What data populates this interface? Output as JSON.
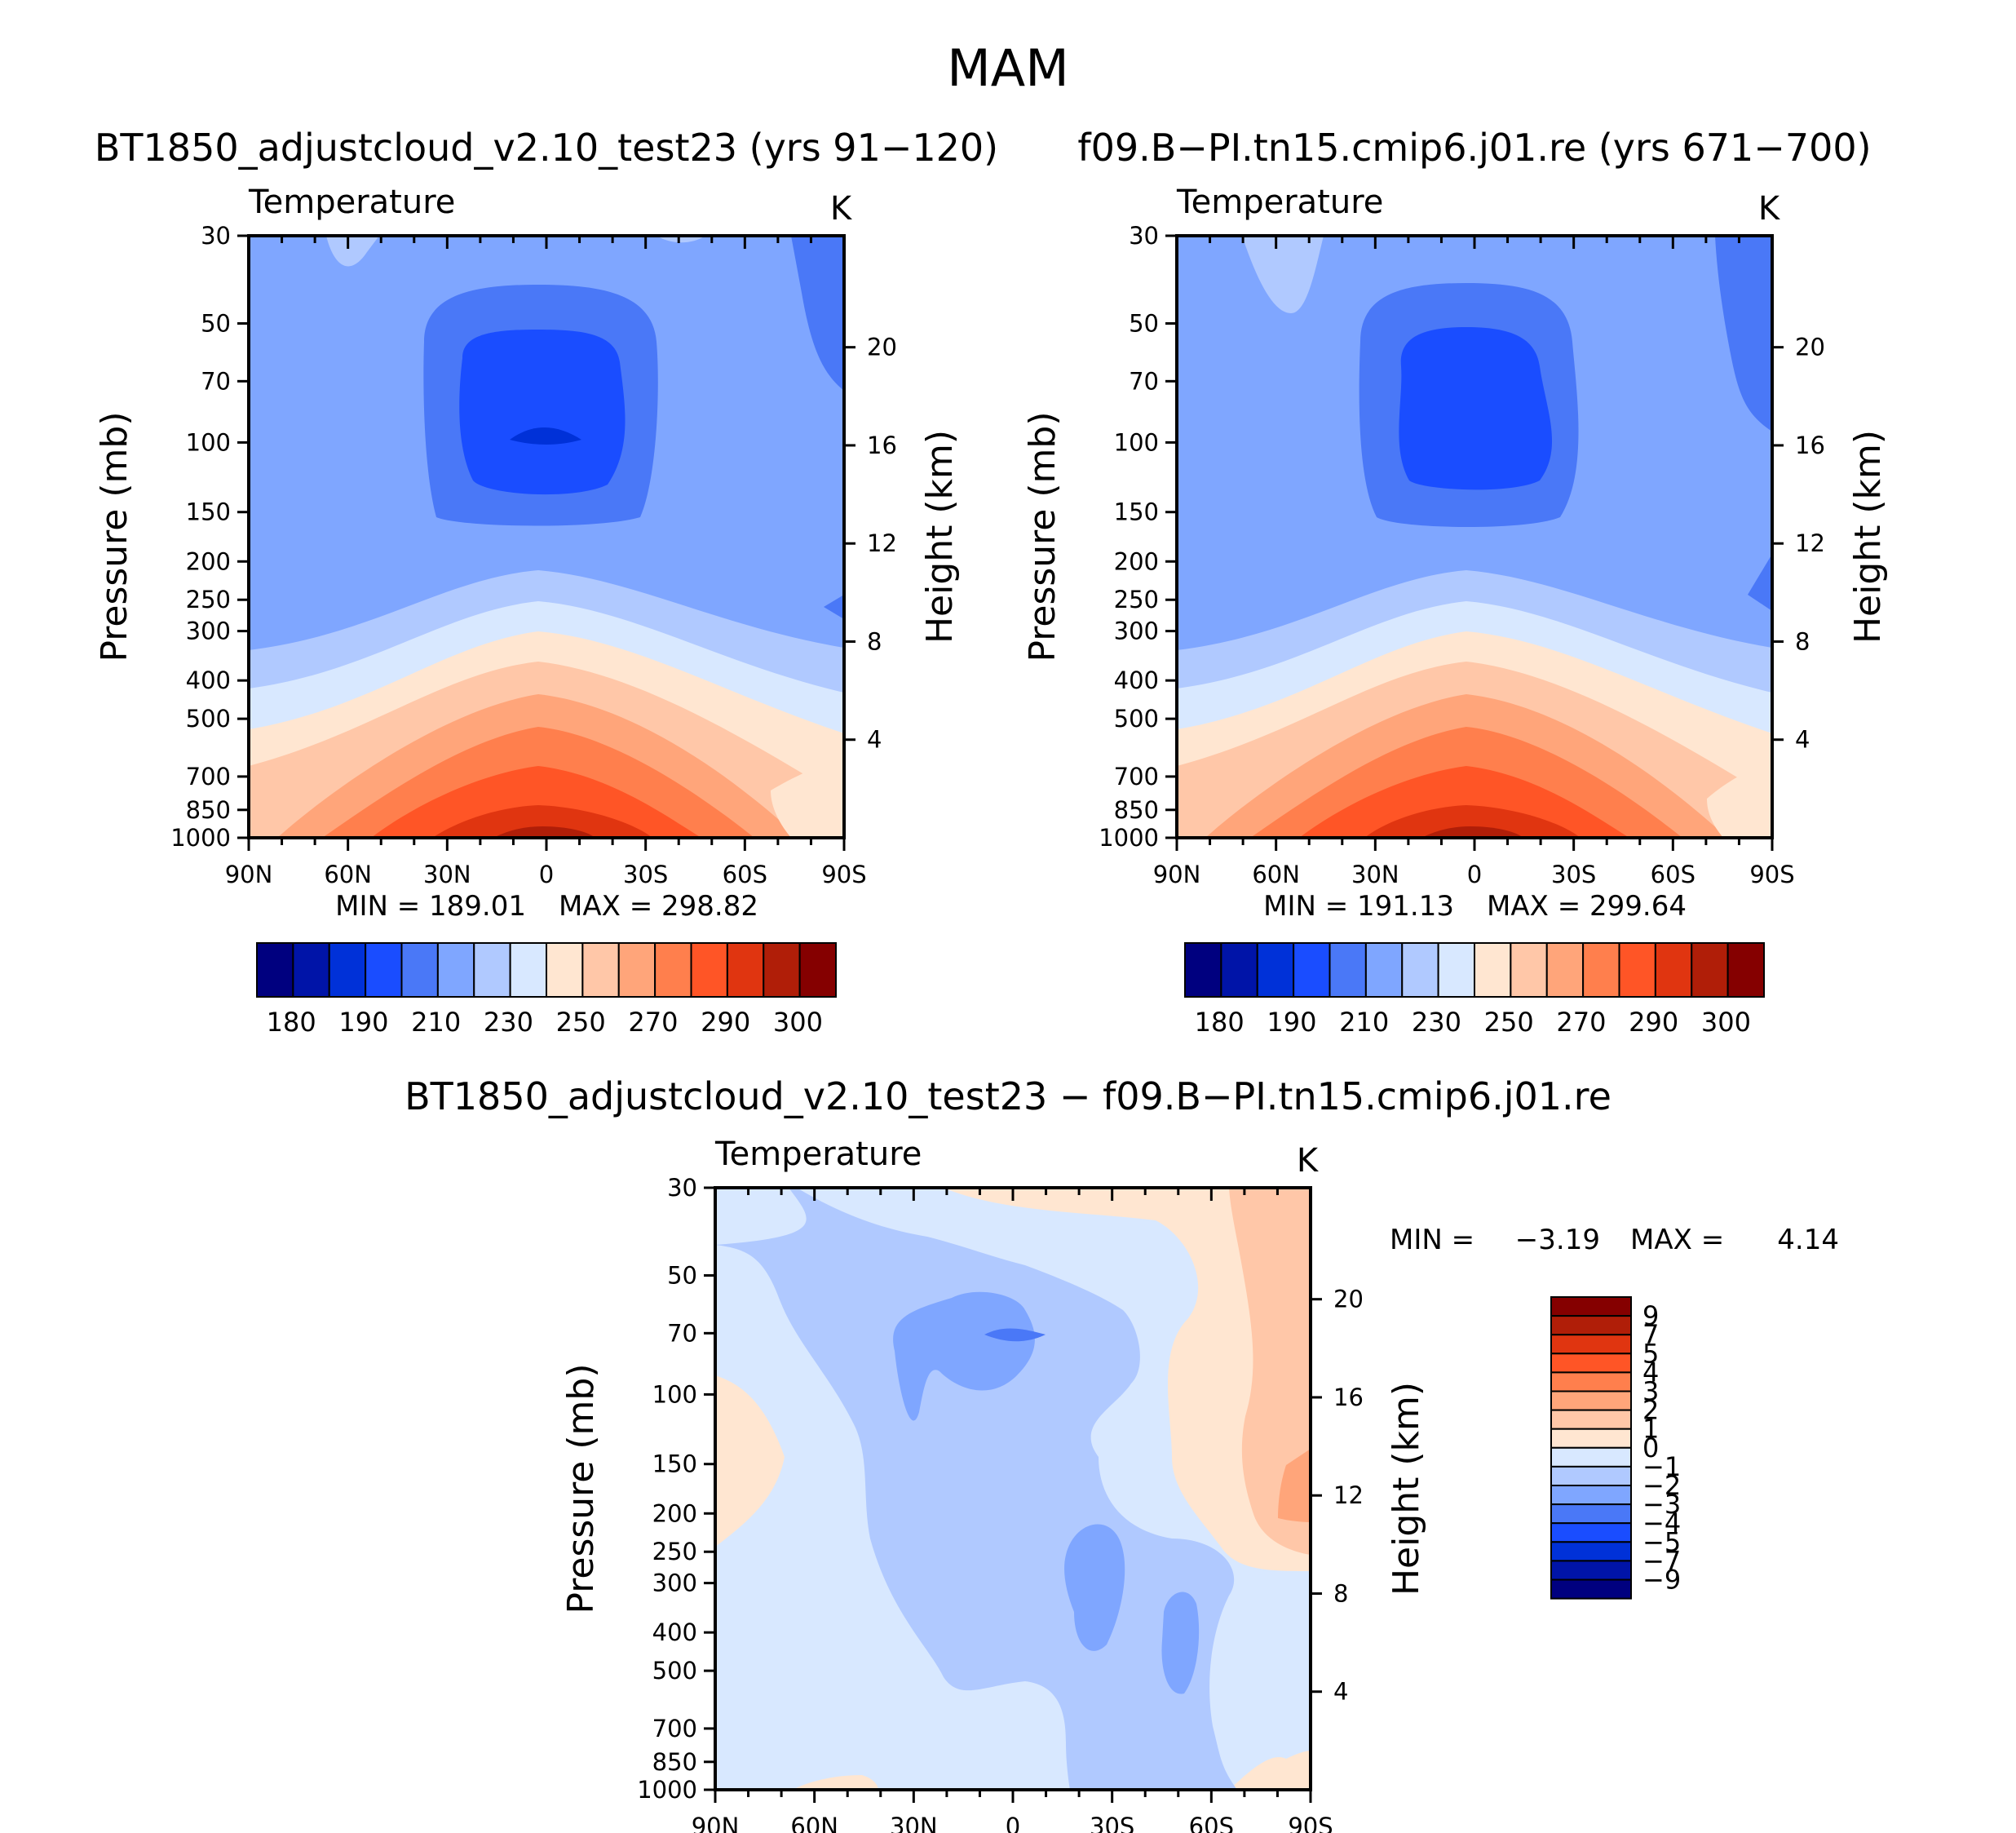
{
  "title": "MAM",
  "panels": [
    {
      "id": "case",
      "title": "BT1850_adjustcloud_v2.10_test23 (yrs 91−120)",
      "variable": "Temperature",
      "units": "K",
      "min_label": "MIN = 189.01",
      "max_label": "MAX = 298.82"
    },
    {
      "id": "control",
      "title": "f09.B−PI.tn15.cmip6.j01.re (yrs 671−700)",
      "variable": "Temperature",
      "units": "K",
      "min_label": "MIN = 191.13",
      "max_label": "MAX = 299.64"
    },
    {
      "id": "diff",
      "title": "BT1850_adjustcloud_v2.10_test23 − f09.B−PI.tn15.cmip6.j01.re",
      "variable": "Temperature",
      "units": "K",
      "min_label": "MIN =",
      "min_value": "−3.19",
      "max_label": "MAX =",
      "max_value": "4.14"
    }
  ],
  "axes": {
    "ylabel": "Pressure (mb)",
    "y2label": "Height (km)",
    "yticks": [
      "30",
      "50",
      "70",
      "100",
      "150",
      "200",
      "250",
      "300",
      "400",
      "500",
      "700",
      "850",
      "1000"
    ],
    "y2ticks": [
      "20",
      "16",
      "12",
      "8",
      "4"
    ],
    "xticks": [
      "90N",
      "60N",
      "30N",
      "0",
      "30S",
      "60S",
      "90S"
    ]
  },
  "colorbars": {
    "abs_colors": [
      "#00007f",
      "#0014a8",
      "#0031d8",
      "#1a4dff",
      "#4a78f7",
      "#7fa6ff",
      "#b0c9ff",
      "#d8e8ff",
      "#ffe6d1",
      "#ffc7a8",
      "#ffa57a",
      "#ff7f4d",
      "#ff5526",
      "#e03510",
      "#b01e08",
      "#850000"
    ],
    "abs_labels": [
      "180",
      "190",
      "210",
      "230",
      "250",
      "270",
      "290",
      "300"
    ],
    "diff_colors": [
      "#00007f",
      "#0014a8",
      "#0031d8",
      "#1a4dff",
      "#4a78f7",
      "#7fa6ff",
      "#b0c9ff",
      "#d8e8ff",
      "#ffe6d1",
      "#ffc7a8",
      "#ffa57a",
      "#ff7f4d",
      "#ff5526",
      "#e03510",
      "#b01e08",
      "#850000"
    ],
    "diff_labels": [
      "9",
      "7",
      "5",
      "4",
      "3",
      "2",
      "1",
      "0",
      "−1",
      "−2",
      "−3",
      "−4",
      "−5",
      "−7",
      "−9"
    ]
  },
  "chart_data": [
    {
      "type": "heatmap",
      "title": "BT1850_adjustcloud_v2.10_test23 (yrs 91−120)",
      "subtitle": "Temperature",
      "units": "K",
      "xlabel": "",
      "ylabel": "Pressure (mb)",
      "y2label": "Height (km)",
      "x_range": [
        90,
        -90
      ],
      "y_range": [
        30,
        1000
      ],
      "y_scale": "log",
      "min": 189.01,
      "max": 298.82,
      "levels": [
        180,
        185,
        190,
        200,
        210,
        220,
        230,
        240,
        250,
        260,
        270,
        280,
        290,
        295,
        300
      ],
      "description_points": {
        "tropical_tropopause_100mb": 190,
        "equator_surface": 298
      }
    },
    {
      "type": "heatmap",
      "title": "f09.B−PI.tn15.cmip6.j01.re (yrs 671−700)",
      "subtitle": "Temperature",
      "units": "K",
      "ylabel": "Pressure (mb)",
      "y2label": "Height (km)",
      "x_range": [
        90,
        -90
      ],
      "y_range": [
        30,
        1000
      ],
      "y_scale": "log",
      "min": 191.13,
      "max": 299.64,
      "levels": [
        180,
        185,
        190,
        200,
        210,
        220,
        230,
        240,
        250,
        260,
        270,
        280,
        290,
        295,
        300
      ]
    },
    {
      "type": "heatmap",
      "title": "BT1850_adjustcloud_v2.10_test23 − f09.B−PI.tn15.cmip6.j01.re",
      "subtitle": "Temperature",
      "units": "K",
      "ylabel": "Pressure (mb)",
      "y2label": "Height (km)",
      "x_range": [
        90,
        -90
      ],
      "y_range": [
        30,
        1000
      ],
      "y_scale": "log",
      "min": -3.19,
      "max": 4.14,
      "levels": [
        -9,
        -7,
        -5,
        -4,
        -3,
        -2,
        -1,
        0,
        1,
        2,
        3,
        4,
        5,
        7,
        9
      ]
    }
  ]
}
